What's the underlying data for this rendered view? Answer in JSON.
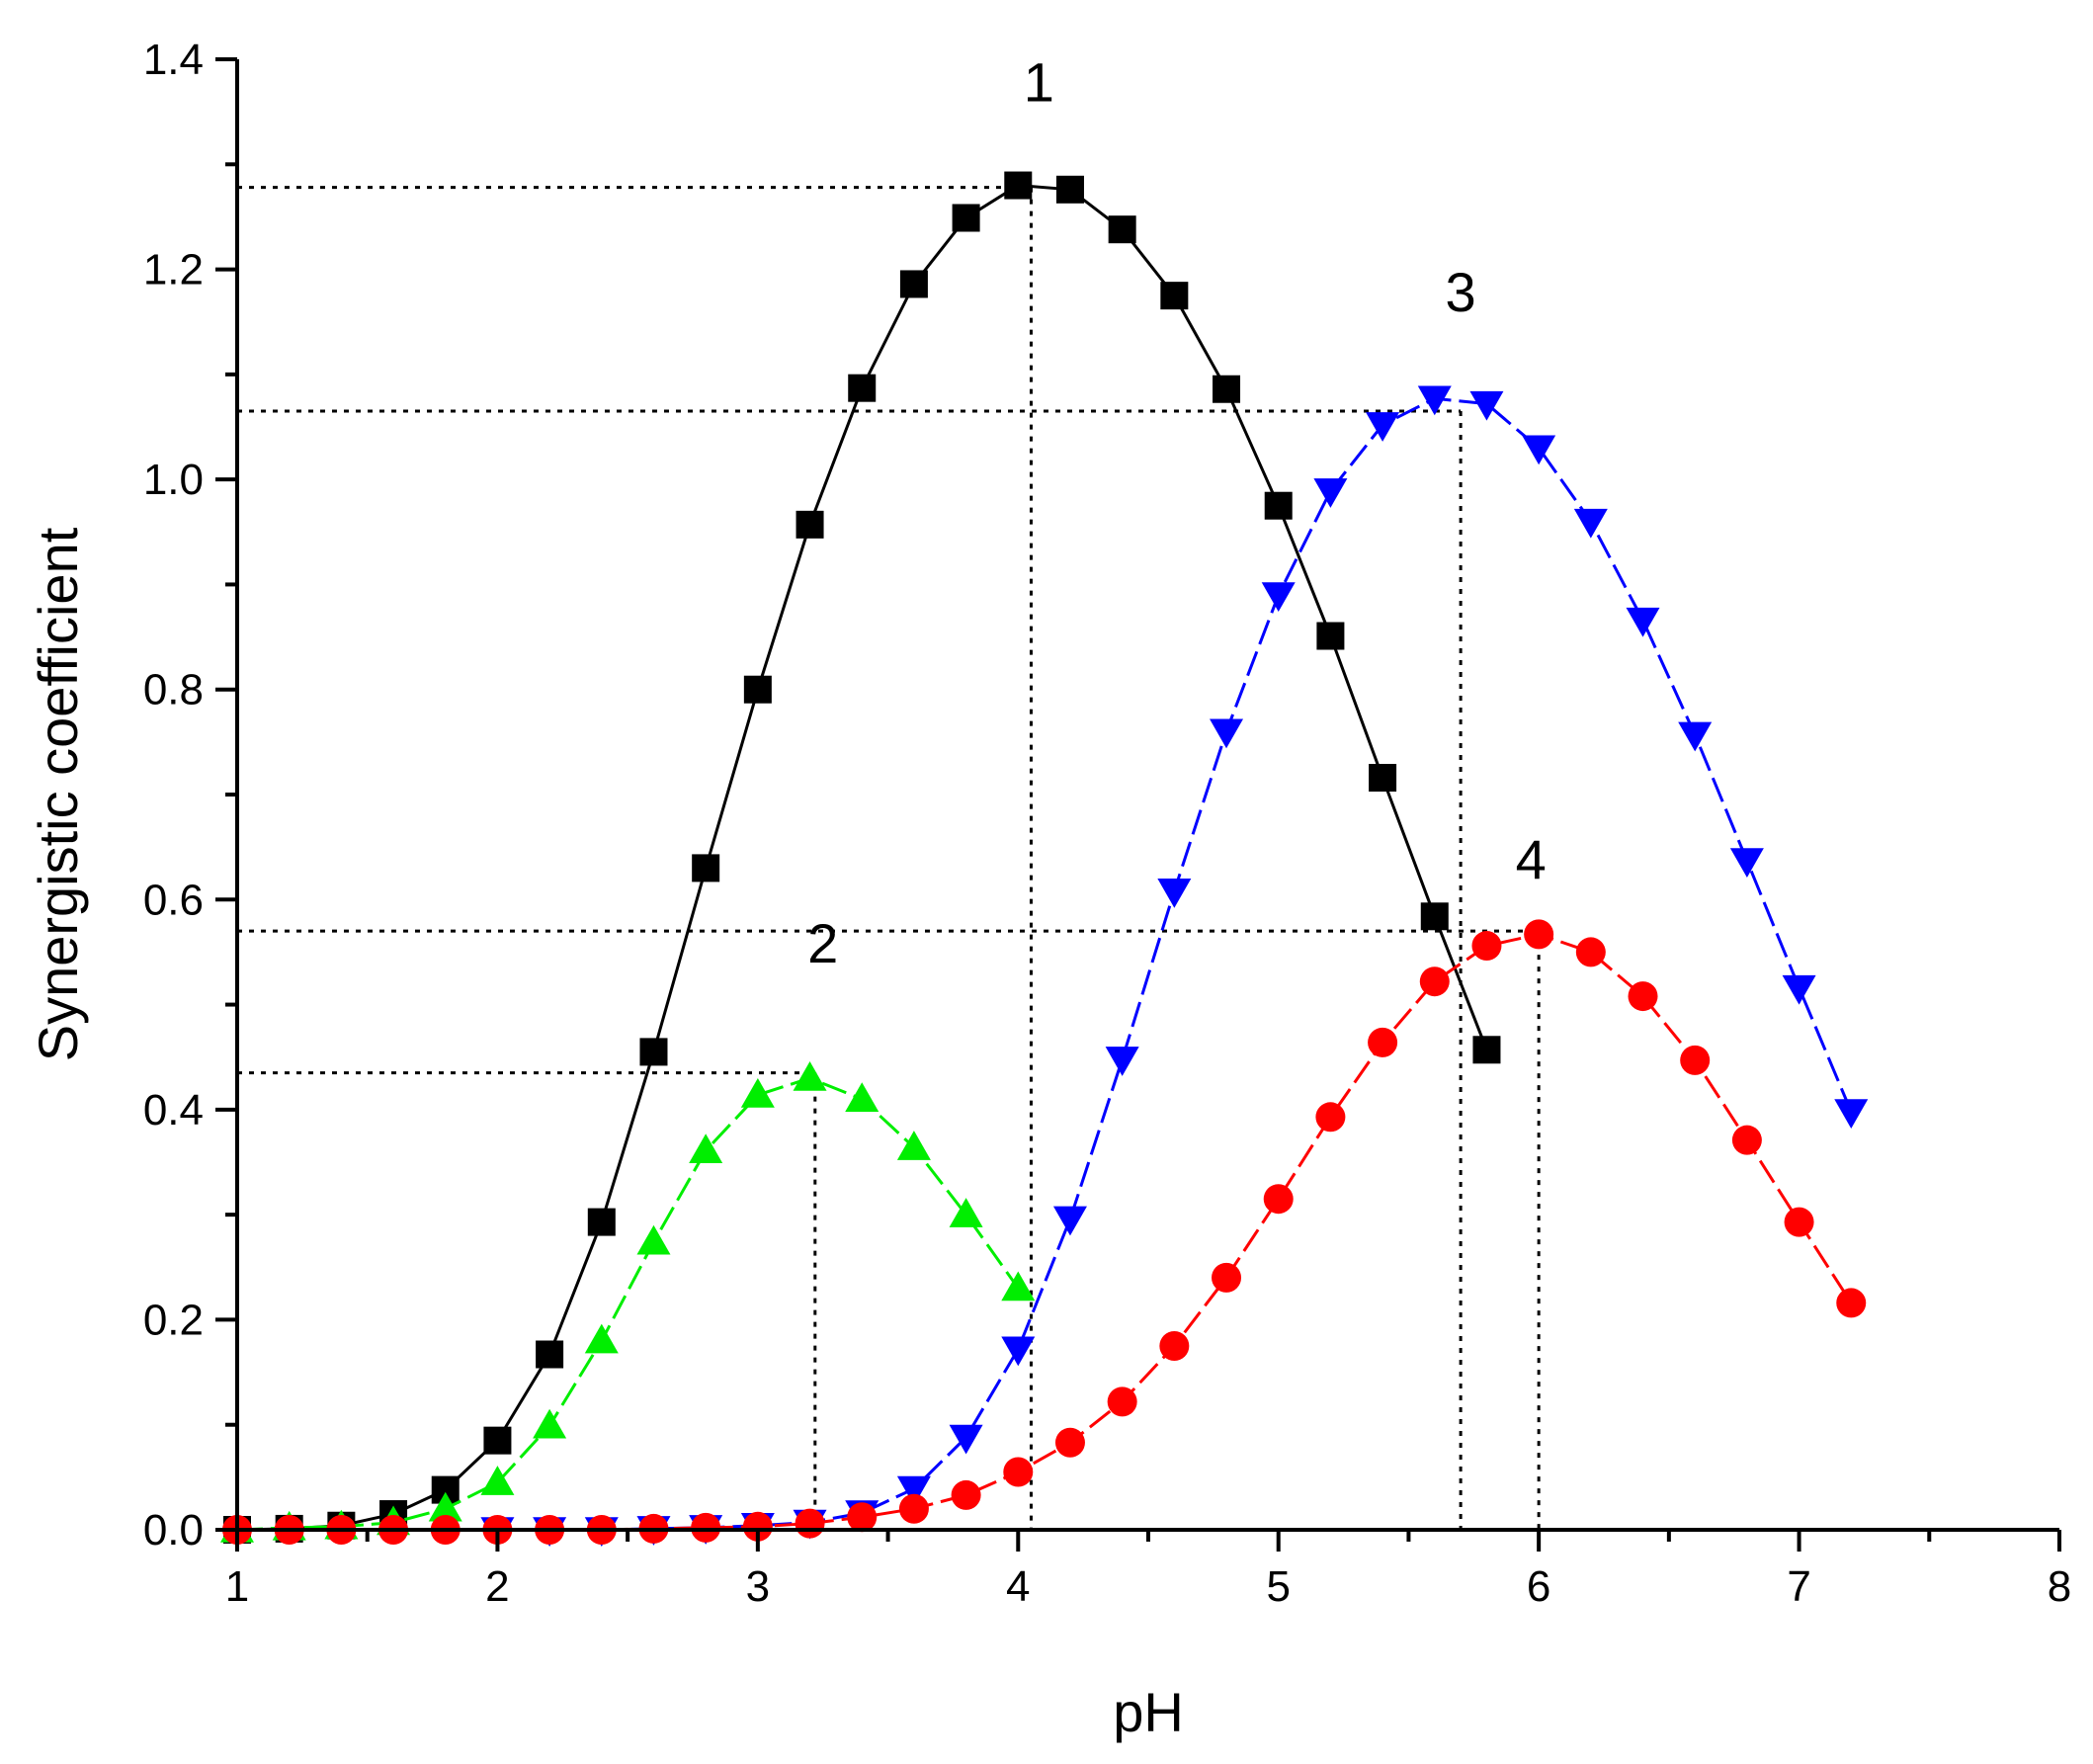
{
  "chart_data": {
    "type": "line",
    "title": "",
    "xlabel": "pH",
    "ylabel": "Synergistic coefficient",
    "xlim": [
      1,
      8
    ],
    "ylim": [
      0,
      1.4
    ],
    "grid": false,
    "x_ticks": [
      "1",
      "2",
      "3",
      "4",
      "5",
      "6",
      "7",
      "8"
    ],
    "y_ticks": [
      "0.0",
      "0.2",
      "0.4",
      "0.6",
      "0.8",
      "1.0",
      "1.2",
      "1.4"
    ],
    "series": [
      {
        "name": "1",
        "color": "#000000",
        "marker": "square",
        "line_style": "solid",
        "x": [
          1.0,
          1.2,
          1.4,
          1.6,
          1.8,
          2.0,
          2.2,
          2.4,
          2.6,
          2.8,
          3.0,
          3.2,
          3.4,
          3.6,
          3.8,
          4.0,
          4.2,
          4.4,
          4.6,
          4.8,
          5.0,
          5.2,
          5.4,
          5.6,
          5.8
        ],
        "y": [
          0.0,
          0.001,
          0.004,
          0.015,
          0.038,
          0.085,
          0.167,
          0.293,
          0.455,
          0.63,
          0.8,
          0.957,
          1.087,
          1.186,
          1.249,
          1.28,
          1.276,
          1.238,
          1.175,
          1.086,
          0.975,
          0.851,
          0.716,
          0.584,
          0.457
        ]
      },
      {
        "name": "2",
        "color": "#00ee00",
        "marker": "triangle-up",
        "line_style": "dashed",
        "x": [
          1.0,
          1.2,
          1.4,
          1.6,
          1.8,
          2.0,
          2.2,
          2.4,
          2.6,
          2.8,
          3.0,
          3.2,
          3.4,
          3.6,
          3.8,
          4.0
        ],
        "y": [
          0.0,
          0.002,
          0.003,
          0.007,
          0.02,
          0.045,
          0.099,
          0.18,
          0.274,
          0.361,
          0.414,
          0.43,
          0.41,
          0.364,
          0.3,
          0.23
        ]
      },
      {
        "name": "3",
        "color": "#0000ff",
        "marker": "triangle-down",
        "line_style": "dashed",
        "x": [
          2.0,
          2.2,
          2.4,
          2.6,
          2.8,
          3.0,
          3.2,
          3.4,
          3.6,
          3.8,
          4.0,
          4.2,
          4.4,
          4.6,
          4.8,
          5.0,
          5.2,
          5.4,
          5.6,
          5.8,
          6.0,
          6.2,
          6.4,
          6.6,
          6.8,
          7.0,
          7.2
        ],
        "y": [
          0.0,
          0.0,
          0.0,
          0.001,
          0.002,
          0.004,
          0.007,
          0.016,
          0.039,
          0.088,
          0.172,
          0.296,
          0.448,
          0.608,
          0.76,
          0.89,
          0.989,
          1.052,
          1.077,
          1.072,
          1.03,
          0.96,
          0.866,
          0.757,
          0.637,
          0.516,
          0.398
        ]
      },
      {
        "name": "4",
        "color": "#ff0000",
        "marker": "circle",
        "line_style": "dashed",
        "x": [
          1.0,
          1.2,
          1.4,
          1.6,
          1.8,
          2.0,
          2.2,
          2.4,
          2.6,
          2.8,
          3.0,
          3.2,
          3.4,
          3.6,
          3.8,
          4.0,
          4.2,
          4.4,
          4.6,
          4.8,
          5.0,
          5.2,
          5.4,
          5.6,
          5.8,
          6.0,
          6.2,
          6.4,
          6.6,
          6.8,
          7.0,
          7.2
        ],
        "y": [
          0.0,
          0.0,
          0.0,
          0.0,
          0.0,
          0.0,
          0.0,
          0.0,
          0.001,
          0.002,
          0.003,
          0.006,
          0.012,
          0.02,
          0.033,
          0.055,
          0.083,
          0.122,
          0.175,
          0.24,
          0.315,
          0.393,
          0.464,
          0.522,
          0.556,
          0.567,
          0.55,
          0.508,
          0.447,
          0.371,
          0.293,
          0.216
        ]
      }
    ],
    "annotations": [
      {
        "text": "1",
        "x": 4.08,
        "y": 1.36
      },
      {
        "text": "2",
        "x": 3.25,
        "y": 0.54
      },
      {
        "text": "3",
        "x": 5.7,
        "y": 1.16
      },
      {
        "text": "4",
        "x": 5.97,
        "y": 0.62
      }
    ],
    "reference_lines": [
      {
        "y": 1.278,
        "x_start": 1.0,
        "x_end": 4.05,
        "x_drop": 4.05,
        "style": "dotted"
      },
      {
        "y": 1.065,
        "x_start": 1.0,
        "x_end": 5.7,
        "x_drop": 5.7,
        "style": "dotted"
      },
      {
        "y": 0.57,
        "x_start": 1.0,
        "x_end": 6.0,
        "x_drop": 6.0,
        "style": "dotted"
      },
      {
        "y": 0.435,
        "x_start": 1.0,
        "x_end": 3.22,
        "x_drop": 3.22,
        "style": "dotted"
      }
    ]
  }
}
